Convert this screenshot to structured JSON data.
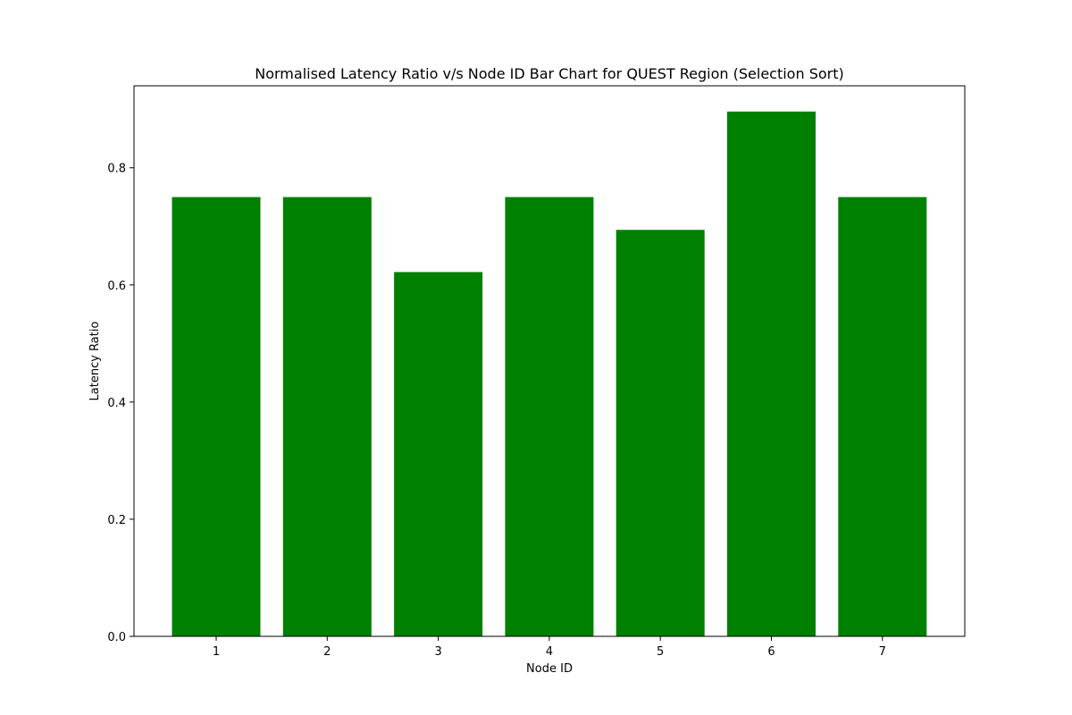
{
  "chart_data": {
    "type": "bar",
    "title": "Normalised Latency Ratio v/s Node ID Bar Chart for QUEST Region (Selection Sort)",
    "xlabel": "Node ID",
    "ylabel": "Latency Ratio",
    "categories": [
      "1",
      "2",
      "3",
      "4",
      "5",
      "6",
      "7"
    ],
    "values": [
      0.75,
      0.75,
      0.622,
      0.75,
      0.694,
      0.896,
      0.75
    ],
    "ylim": [
      0,
      0.94
    ],
    "yticks": [
      0.0,
      0.2,
      0.4,
      0.6,
      0.8
    ],
    "ytick_labels": [
      "0.0",
      "0.2",
      "0.4",
      "0.6",
      "0.8"
    ],
    "bar_color": "#008000",
    "grid": false,
    "legend": "none"
  }
}
